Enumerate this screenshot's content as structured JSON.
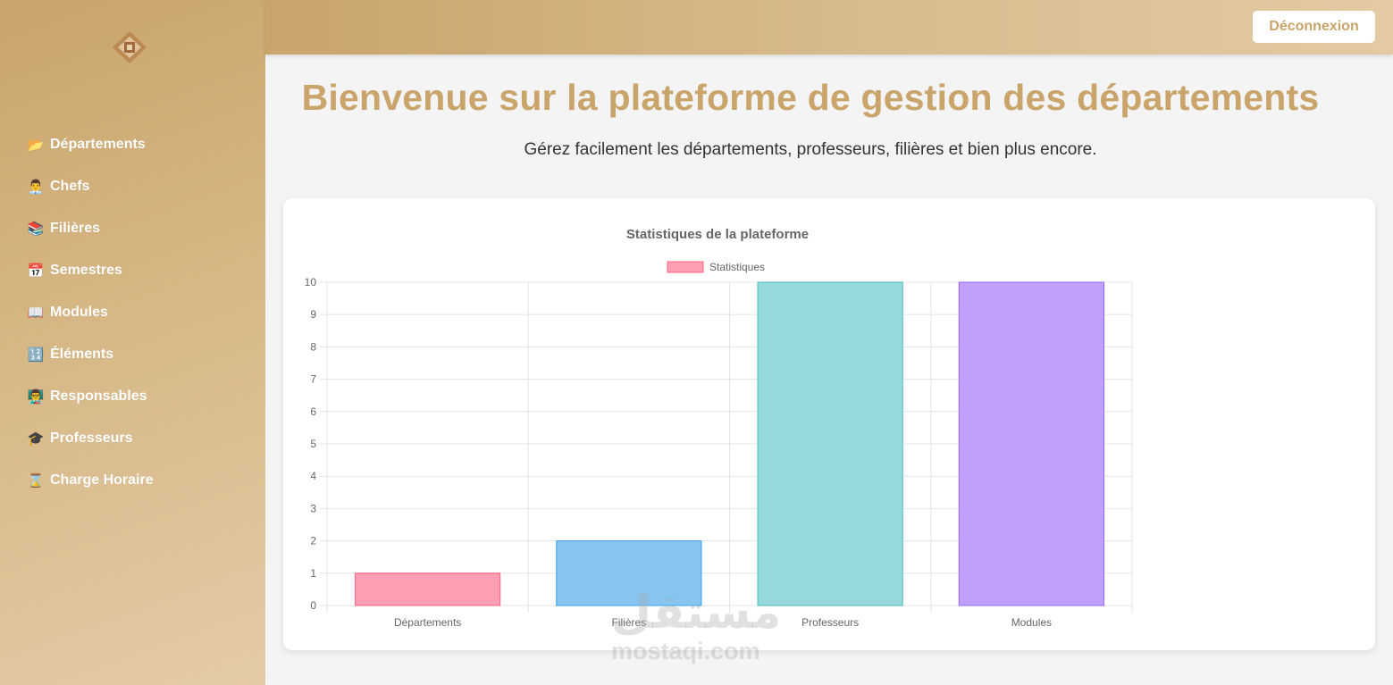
{
  "sidebar": {
    "items": [
      {
        "icon": "folder-icon",
        "emoji": "📂",
        "label": "Départements"
      },
      {
        "icon": "person-icon",
        "emoji": "👨‍💼",
        "label": "Chefs"
      },
      {
        "icon": "books-icon",
        "emoji": "📚",
        "label": "Filières"
      },
      {
        "icon": "calendar-icon",
        "emoji": "📅",
        "label": "Semestres"
      },
      {
        "icon": "book-icon",
        "emoji": "📖",
        "label": "Modules"
      },
      {
        "icon": "numbers-icon",
        "emoji": "🔢",
        "label": "Éléments"
      },
      {
        "icon": "teacher-icon",
        "emoji": "👨‍🏫",
        "label": "Responsables"
      },
      {
        "icon": "graduation-cap-icon",
        "emoji": "🎓",
        "label": "Professeurs"
      },
      {
        "icon": "hourglass-icon",
        "emoji": "⌛",
        "label": "Charge Horaire"
      }
    ]
  },
  "header": {
    "logout_label": "Déconnexion"
  },
  "main": {
    "title": "Bienvenue sur la plateforme de gestion des départements",
    "subtitle": "Gérez facilement les départements, professeurs, filières et bien plus encore."
  },
  "chart_data": {
    "type": "bar",
    "title": "Statistiques de la plateforme",
    "legend": "top",
    "categories": [
      "Départements",
      "Filières",
      "Professeurs",
      "Modules"
    ],
    "series": [
      {
        "name": "Statistiques",
        "values": [
          1,
          2,
          10,
          10
        ]
      }
    ],
    "colors": [
      "#ff9fb3",
      "#86c5f0",
      "#96d9da",
      "#c0a0fd"
    ],
    "borders": [
      "#ff6384",
      "#36a2eb",
      "#4bc0c0",
      "#9966ff"
    ],
    "ylim": [
      0,
      10
    ],
    "yticks": [
      0,
      1,
      2,
      3,
      4,
      5,
      6,
      7,
      8,
      9,
      10
    ],
    "grid": true
  },
  "watermark": {
    "arabic": "مستقل",
    "latin": "mostaqi.com"
  }
}
